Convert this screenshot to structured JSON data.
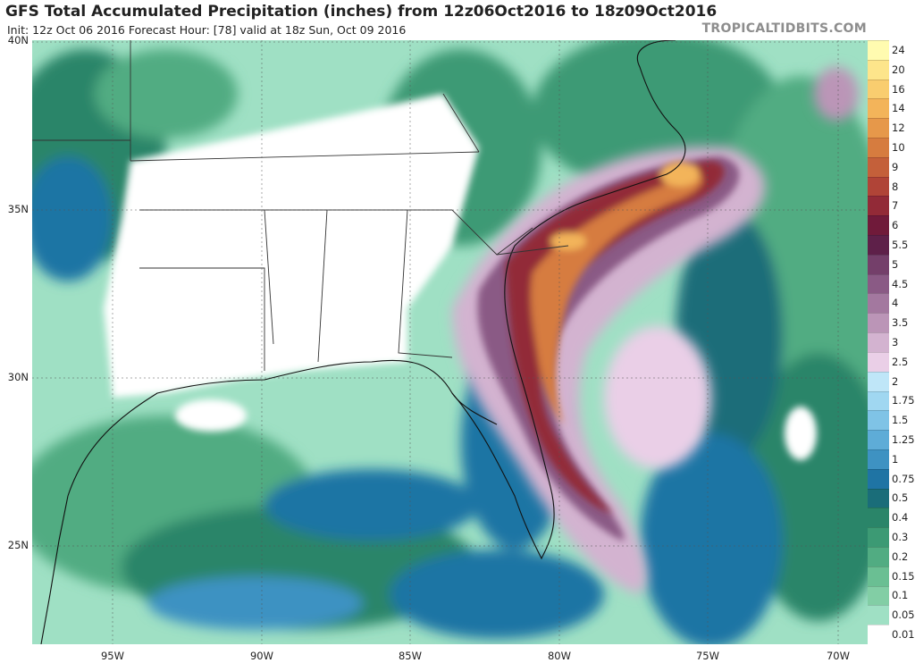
{
  "header": {
    "title": "GFS Total Accumulated Precipitation (inches) from 12z06Oct2016 to 18z09Oct2016",
    "subtitle": "Init: 12z Oct 06 2016   Forecast Hour: [78]   valid at 18z Sun, Oct 09 2016",
    "brand": "TROPICALTIDBITS.COM"
  },
  "map": {
    "lat_labels": [
      "40N",
      "35N",
      "30N",
      "25N"
    ],
    "lon_labels": [
      "95W",
      "90W",
      "85W",
      "80W",
      "75W",
      "70W"
    ]
  },
  "colorbar": {
    "levels": [
      "24",
      "20",
      "16",
      "14",
      "12",
      "10",
      "9",
      "8",
      "7",
      "6",
      "5.5",
      "5",
      "4.5",
      "4",
      "3.5",
      "3",
      "2.5",
      "2",
      "1.75",
      "1.5",
      "1.25",
      "1",
      "0.75",
      "0.5",
      "0.4",
      "0.3",
      "0.2",
      "0.15",
      "0.1",
      "0.05",
      "0.01"
    ],
    "colors": [
      "#fffbb0",
      "#fde58b",
      "#f9cd6f",
      "#f3b45a",
      "#e6984a",
      "#d67c3f",
      "#c4603a",
      "#b04437",
      "#922a37",
      "#701a3a",
      "#5e2049",
      "#743f6a",
      "#8a5a85",
      "#a3789f",
      "#bb95b7",
      "#d3b3d0",
      "#eacfe7",
      "#bfe6f8",
      "#a0d7f1",
      "#7fc3e6",
      "#5eacd7",
      "#3e92c2",
      "#1f74a4",
      "#1a6d79",
      "#2a8569",
      "#3c9a74",
      "#51ac82",
      "#6abf93",
      "#82cea5",
      "#9fe0c4",
      "#ffffff"
    ]
  }
}
